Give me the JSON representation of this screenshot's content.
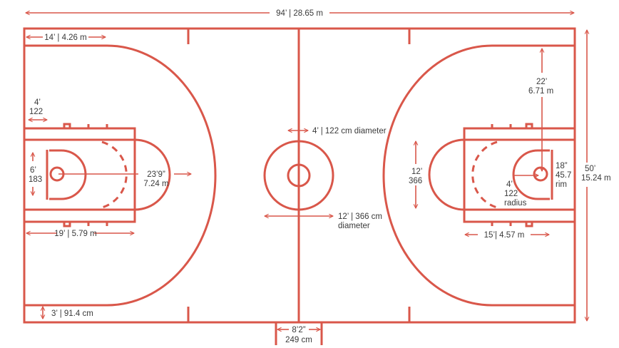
{
  "labels": {
    "court_length": "94’ | 28.65 m",
    "court_width": [
      "50’",
      "15.24 m"
    ],
    "backcourt": "14’ | 4.26 m",
    "lane_hash": [
      "4’",
      "122"
    ],
    "center_circle_inner": "4’ | 122 cm diameter",
    "center_circle_outer": [
      "12’ | 366 cm",
      "diameter"
    ],
    "three_point": [
      "23’9”",
      "7.24 m"
    ],
    "backboard_width": [
      "6’",
      "183"
    ],
    "baseline_to_ft": "19’ | 5.79 m",
    "restricted": "3’ | 91.4 cm",
    "bench_gap": [
      "8’2”",
      "249 cm"
    ],
    "sideline_to_hoop": [
      "22’",
      "6.71 m"
    ],
    "key_width": [
      "12’",
      "366"
    ],
    "rim": [
      "18”",
      "45.7",
      "rim"
    ],
    "restricted_radius": [
      "4’",
      "122",
      "radius"
    ],
    "ft_line": "15’| 4.57 m"
  },
  "colors": {
    "court_lines": "#d9574a",
    "text": "#3a3a3a"
  }
}
